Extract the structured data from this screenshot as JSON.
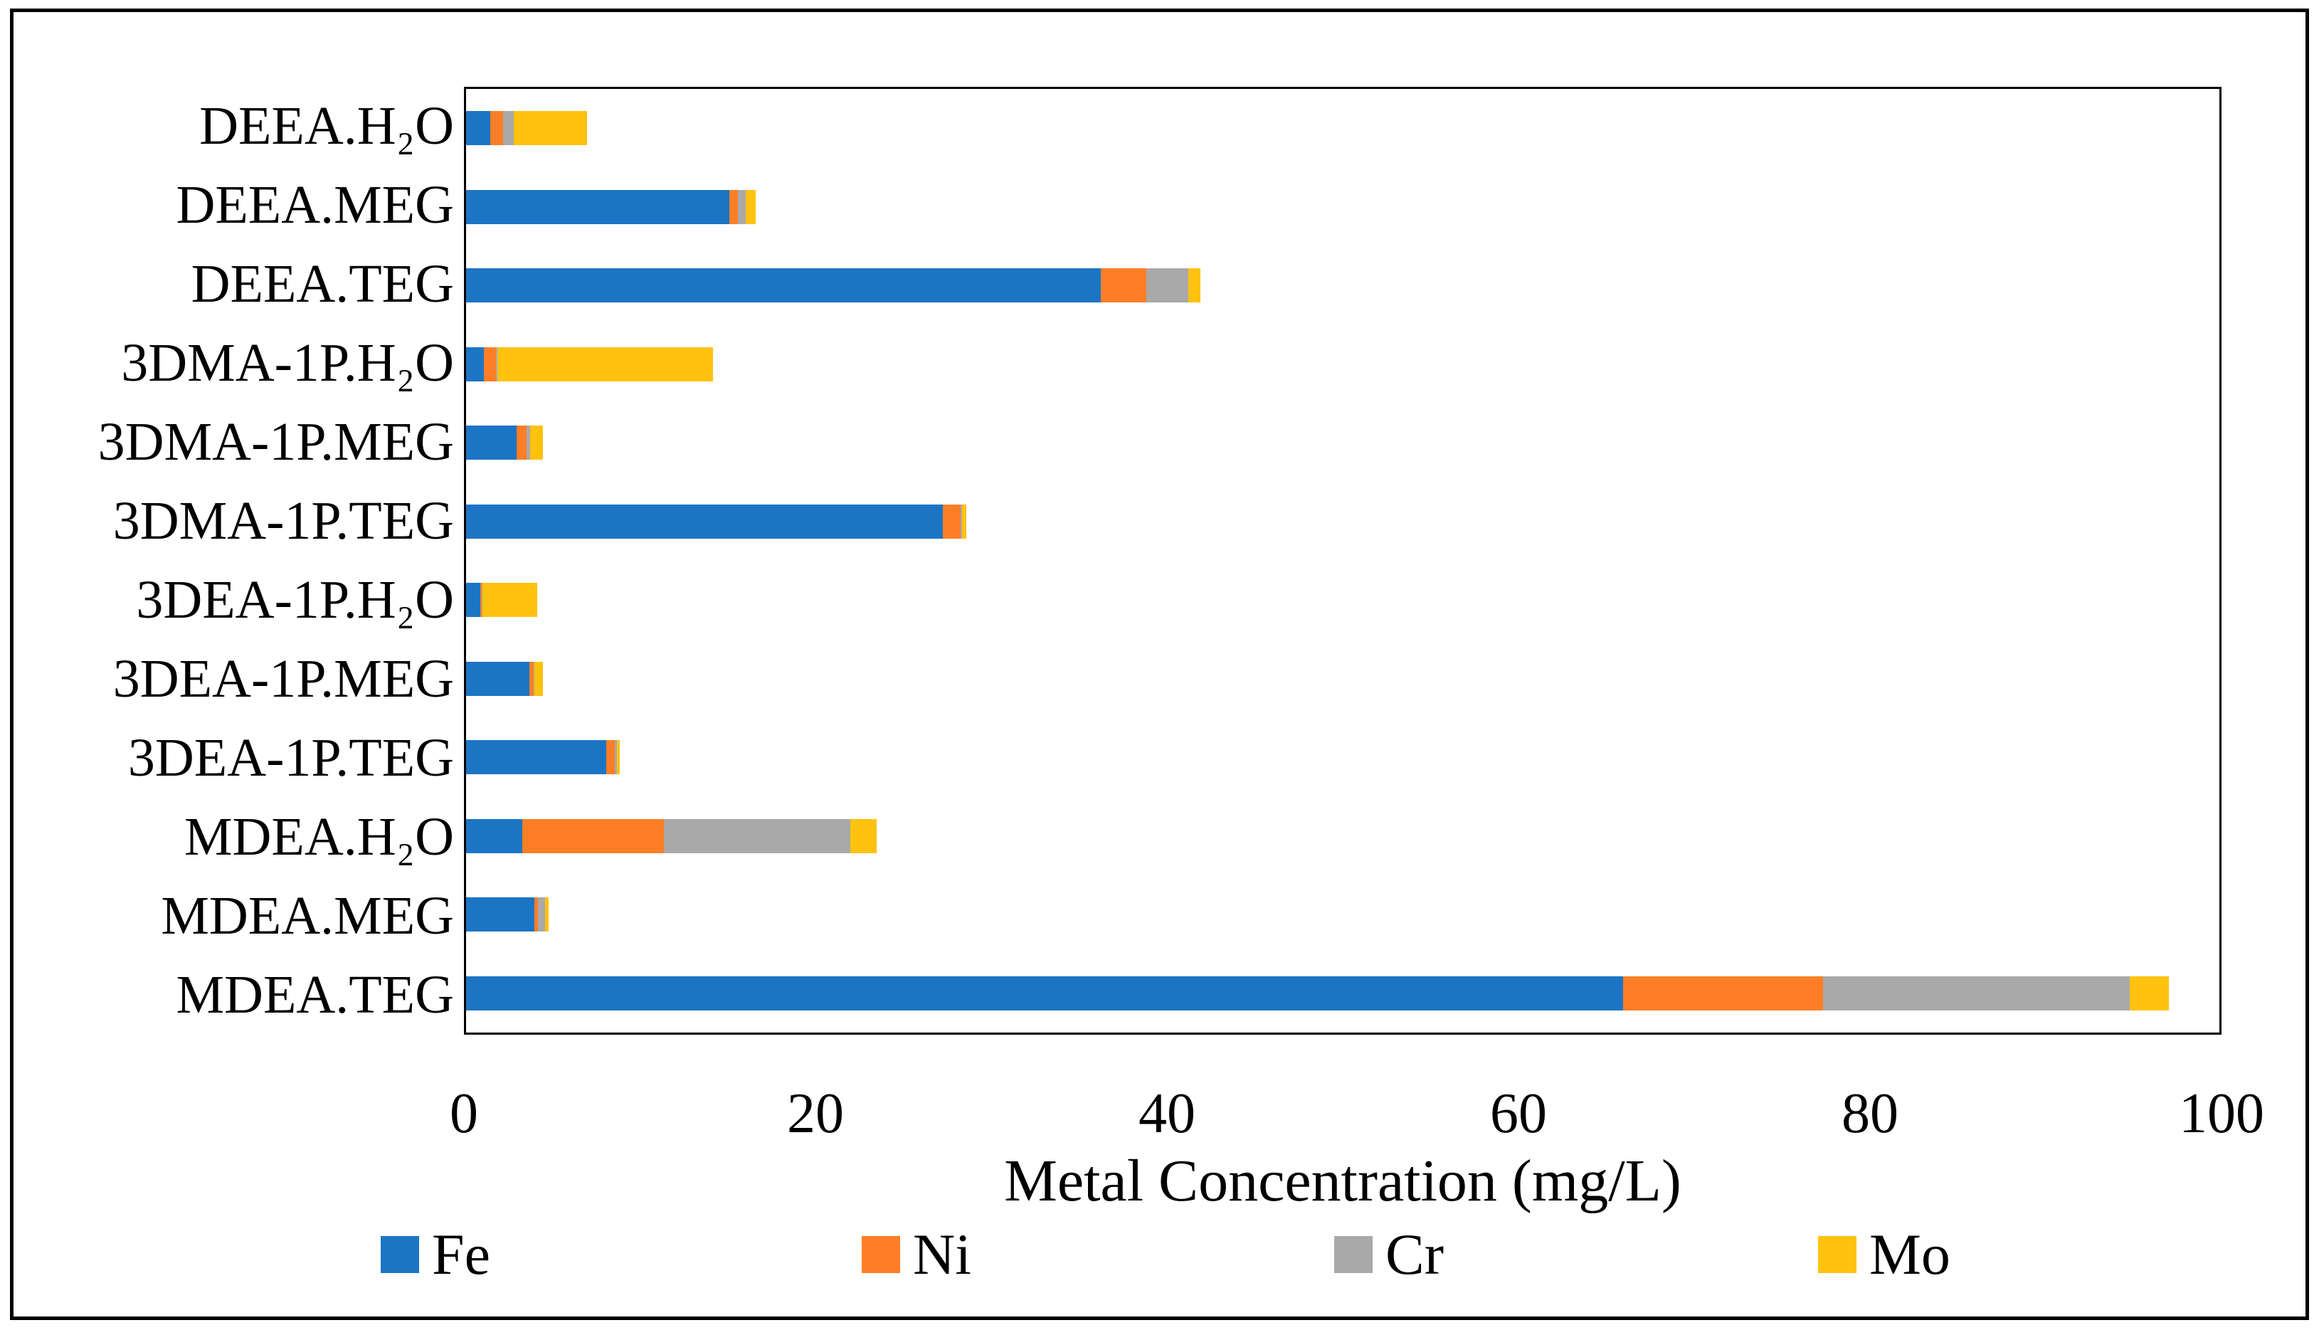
{
  "chart_data": {
    "type": "bar",
    "orientation": "horizontal",
    "stacked": true,
    "title": "",
    "xlabel": "Metal Concentration (mg/L)",
    "ylabel": "",
    "xlim": [
      0,
      100
    ],
    "x_ticks": [
      0,
      20,
      40,
      60,
      80,
      100
    ],
    "grid": false,
    "legend_position": "bottom",
    "categories": [
      "DEEA.H₂O",
      "DEEA.MEG",
      "DEEA.TEG",
      "3DMA-1P.H₂O",
      "3DMA-1P.MEG",
      "3DMA-1P.TEG",
      "3DEA-1P.H₂O",
      "3DEA-1P.MEG",
      "3DEA-1P.TEG",
      "MDEA.H₂O",
      "MDEA.MEG",
      "MDEA.TEG"
    ],
    "series": [
      {
        "name": "Fe",
        "color": "#1C75C4",
        "values": [
          1.4,
          15.0,
          36.2,
          1.0,
          2.9,
          27.2,
          0.8,
          3.6,
          8.0,
          3.2,
          3.9,
          66.0
        ]
      },
      {
        "name": "Ni",
        "color": "#FD7E26",
        "values": [
          0.7,
          0.5,
          2.6,
          0.7,
          0.55,
          1.0,
          0.1,
          0.25,
          0.5,
          8.1,
          0.2,
          11.4
        ]
      },
      {
        "name": "Cr",
        "color": "#A9A9A9",
        "values": [
          0.6,
          0.45,
          2.4,
          0.1,
          0.2,
          0.1,
          0.05,
          0.05,
          0.1,
          10.6,
          0.4,
          17.5
        ]
      },
      {
        "name": "Mo",
        "color": "#FFC20E",
        "values": [
          4.2,
          0.55,
          0.7,
          12.3,
          0.75,
          0.25,
          3.1,
          0.5,
          0.15,
          1.5,
          0.2,
          2.2
        ]
      }
    ]
  },
  "axis": {
    "x_title": "Metal Concentration (mg/L)"
  },
  "legend": {
    "items": [
      "Fe",
      "Ni",
      "Cr",
      "Mo"
    ]
  }
}
